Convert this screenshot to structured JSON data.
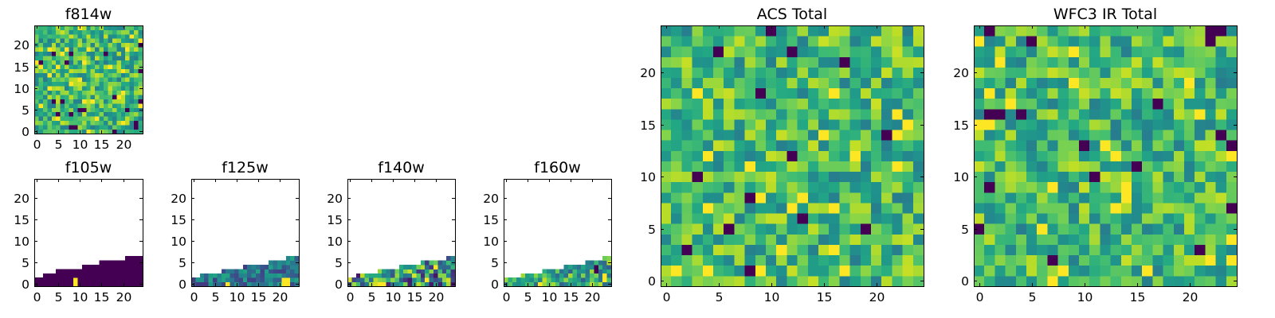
{
  "chart_data": [
    {
      "id": "f814w",
      "type": "heatmap",
      "title": "f814w",
      "colormap": "viridis",
      "grid_size": 25,
      "coverage": "full",
      "seed": 11,
      "low_fraction": 0.04,
      "xticks": [
        0,
        5,
        10,
        15,
        20
      ],
      "yticks": [
        0,
        5,
        10,
        15,
        20
      ],
      "xlim": [
        -0.5,
        24.5
      ],
      "ylim": [
        -0.5,
        24.5
      ]
    },
    {
      "id": "f105w",
      "type": "heatmap",
      "title": "f105w",
      "colormap": "viridis",
      "grid_size": 25,
      "coverage": "stair",
      "stair_rows": [
        2,
        2,
        3,
        3,
        3,
        4,
        4,
        4,
        4,
        4,
        4,
        5,
        5,
        5,
        5,
        6,
        6,
        6,
        6,
        6,
        6,
        7,
        7,
        7,
        7
      ],
      "mostly_low": true,
      "bright_cells": [
        [
          9,
          0
        ],
        [
          9,
          1
        ]
      ],
      "seed": 21,
      "xticks": [
        0,
        5,
        10,
        15,
        20
      ],
      "yticks": [
        0,
        5,
        10,
        15,
        20
      ],
      "xlim": [
        -0.5,
        24.5
      ],
      "ylim": [
        -0.5,
        24.5
      ]
    },
    {
      "id": "f125w",
      "type": "heatmap",
      "title": "f125w",
      "colormap": "viridis",
      "grid_size": 25,
      "coverage": "stair",
      "stair_rows": [
        2,
        2,
        3,
        3,
        3,
        3,
        3,
        4,
        4,
        4,
        4,
        4,
        5,
        5,
        5,
        5,
        5,
        5,
        6,
        6,
        6,
        6,
        7,
        7,
        7
      ],
      "value_range": [
        0.15,
        0.6
      ],
      "bright_cells": [
        [
          21,
          0
        ],
        [
          22,
          0
        ],
        [
          21,
          1
        ],
        [
          22,
          1
        ],
        [
          8,
          0
        ]
      ],
      "seed": 31,
      "xticks": [
        0,
        5,
        10,
        15,
        20
      ],
      "yticks": [
        0,
        5,
        10,
        15,
        20
      ],
      "xlim": [
        -0.5,
        24.5
      ],
      "ylim": [
        -0.5,
        24.5
      ]
    },
    {
      "id": "f140w",
      "type": "heatmap",
      "title": "f140w",
      "colormap": "viridis",
      "grid_size": 25,
      "coverage": "stair",
      "stair_rows": [
        2,
        2,
        3,
        3,
        3,
        3,
        3,
        4,
        4,
        4,
        4,
        4,
        5,
        5,
        5,
        5,
        5,
        6,
        6,
        6,
        6,
        6,
        6,
        7,
        7
      ],
      "value_range": [
        0.05,
        0.95
      ],
      "bright_cells": [
        [
          7,
          0
        ],
        [
          8,
          0
        ],
        [
          20,
          4
        ],
        [
          18,
          1
        ]
      ],
      "seed": 41,
      "xticks": [
        0,
        5,
        10,
        15,
        20
      ],
      "yticks": [
        0,
        5,
        10,
        15,
        20
      ],
      "xlim": [
        -0.5,
        24.5
      ],
      "ylim": [
        -0.5,
        24.5
      ]
    },
    {
      "id": "f160w",
      "type": "heatmap",
      "title": "f160w",
      "colormap": "viridis",
      "grid_size": 25,
      "coverage": "stair",
      "stair_rows": [
        2,
        2,
        2,
        2,
        3,
        3,
        3,
        3,
        3,
        4,
        4,
        4,
        4,
        4,
        5,
        5,
        5,
        5,
        5,
        6,
        6,
        6,
        6,
        7,
        7
      ],
      "value_range": [
        0.3,
        0.9
      ],
      "bright_cells": [
        [
          8,
          0
        ],
        [
          23,
          1
        ],
        [
          23,
          2
        ]
      ],
      "dark_cells": [
        [
          21,
          3
        ],
        [
          21,
          4
        ]
      ],
      "seed": 51,
      "xticks": [
        0,
        5,
        10,
        15,
        20
      ],
      "yticks": [
        0,
        5,
        10,
        15,
        20
      ],
      "xlim": [
        -0.5,
        24.5
      ],
      "ylim": [
        -0.5,
        24.5
      ]
    },
    {
      "id": "acs-total",
      "type": "heatmap",
      "title": "ACS Total",
      "colormap": "viridis",
      "grid_size": 25,
      "coverage": "full",
      "seed": 61,
      "low_fraction": 0.025,
      "xticks": [
        0,
        5,
        10,
        15,
        20
      ],
      "yticks": [
        0,
        5,
        10,
        15,
        20
      ],
      "xlim": [
        -0.5,
        24.5
      ],
      "ylim": [
        -0.5,
        24.5
      ]
    },
    {
      "id": "wfc3-ir-total",
      "type": "heatmap",
      "title": "WFC3 IR Total",
      "colormap": "viridis",
      "grid_size": 25,
      "coverage": "full",
      "seed": 71,
      "low_fraction": 0.025,
      "xticks": [
        0,
        5,
        10,
        15,
        20
      ],
      "yticks": [
        0,
        5,
        10,
        15,
        20
      ],
      "xlim": [
        -0.5,
        24.5
      ],
      "ylim": [
        -0.5,
        24.5
      ]
    }
  ]
}
